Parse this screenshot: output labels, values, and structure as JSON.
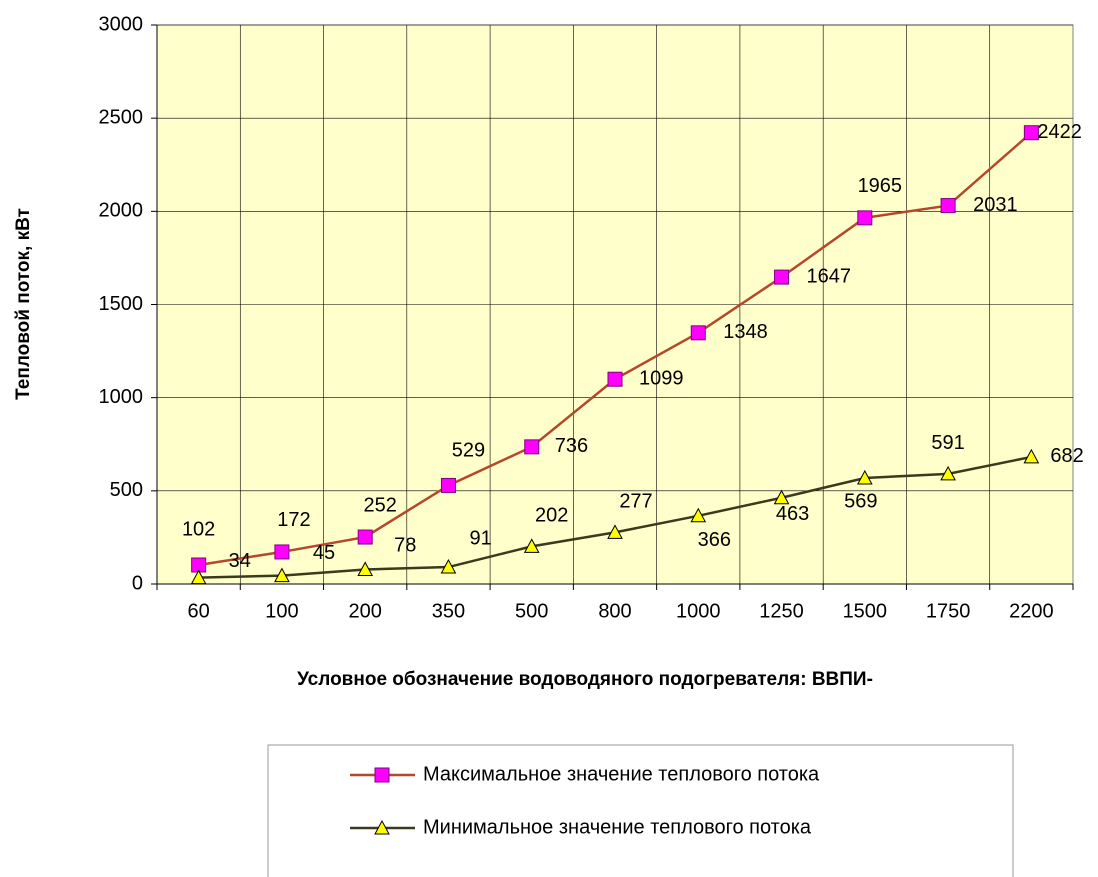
{
  "chart_data": {
    "type": "line",
    "y_label": "Тепловой поток, кВт",
    "x_label": "Условное обозначение водоводяного подогревателя: ВВПИ-",
    "categories": [
      "60",
      "100",
      "200",
      "350",
      "500",
      "800",
      "1000",
      "1250",
      "1500",
      "1750",
      "2200"
    ],
    "series": [
      {
        "name": "Максимальное значение теплового потока",
        "color": "#b5472b",
        "marker_color": "#ff00ff",
        "marker": "square",
        "values": [
          102,
          172,
          252,
          529,
          736,
          1099,
          1348,
          1647,
          1965,
          2031,
          2422
        ]
      },
      {
        "name": "Минимальное значение теплового потока",
        "color": "#3a3a1c",
        "marker_color": "#ffff00",
        "marker": "triangle",
        "values": [
          34,
          45,
          78,
          91,
          202,
          277,
          366,
          463,
          569,
          591,
          682
        ]
      }
    ],
    "ylim": [
      0,
      3000
    ],
    "yticks": [
      0,
      500,
      1000,
      1500,
      2000,
      2500,
      3000
    ],
    "grid": true,
    "plot_background": "#ffffcc",
    "legend": "bottom"
  }
}
